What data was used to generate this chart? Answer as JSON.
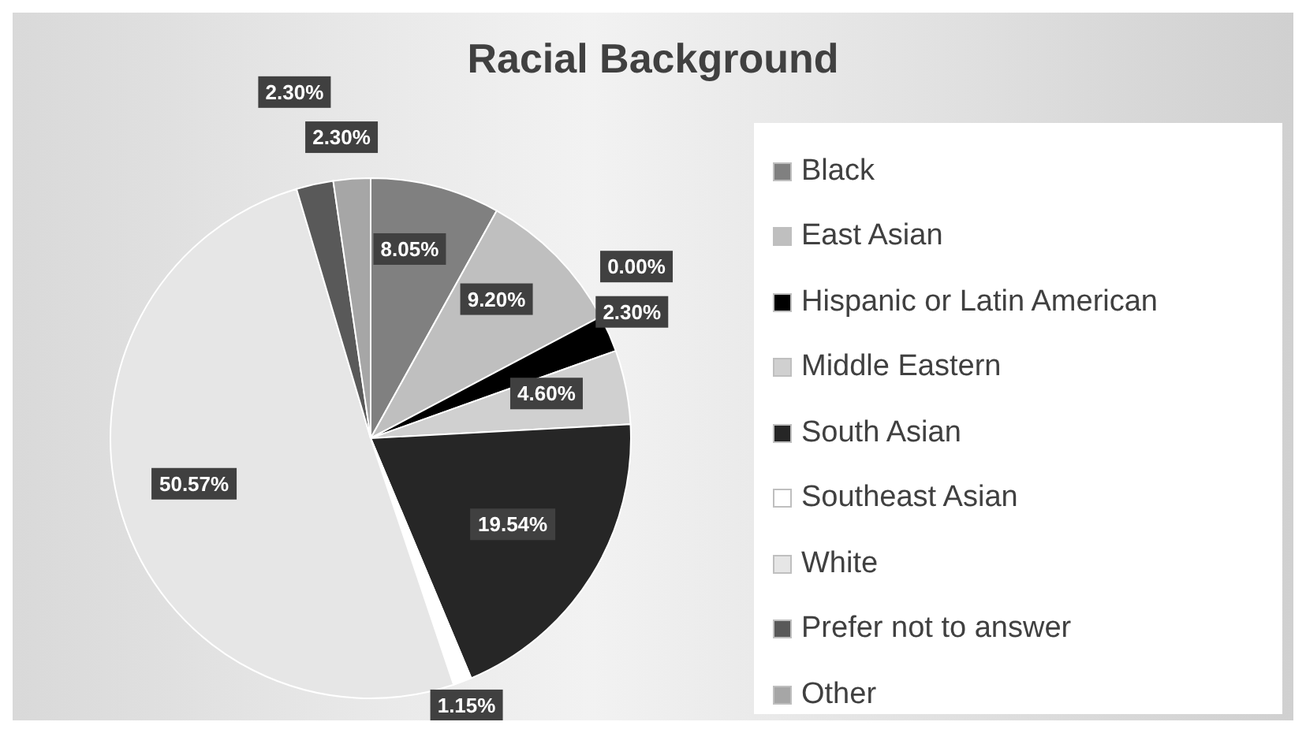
{
  "chart_data": {
    "type": "pie",
    "title": "Racial Background",
    "categories": [
      "Black",
      "East Asian",
      null,
      "Hispanic or Latin American",
      "Middle Eastern",
      "South Asian",
      "Southeast Asian",
      "White",
      "Prefer not to answer",
      "Other"
    ],
    "values": [
      8.05,
      9.2,
      0.0,
      2.3,
      4.6,
      19.54,
      1.15,
      50.57,
      2.3,
      2.3
    ],
    "value_labels": [
      "8.05%",
      "9.20%",
      "0.00%",
      "2.30%",
      "4.60%",
      "19.54%",
      "1.15%",
      "50.57%",
      "2.30%",
      "2.30%"
    ],
    "colors": [
      "#808080",
      "#bfbfbf",
      "#000000",
      "#000000",
      "#d0d0d0",
      "#262626",
      "#ffffff",
      "#e6e6e6",
      "#595959",
      "#a6a6a6"
    ],
    "legend": "right"
  }
}
